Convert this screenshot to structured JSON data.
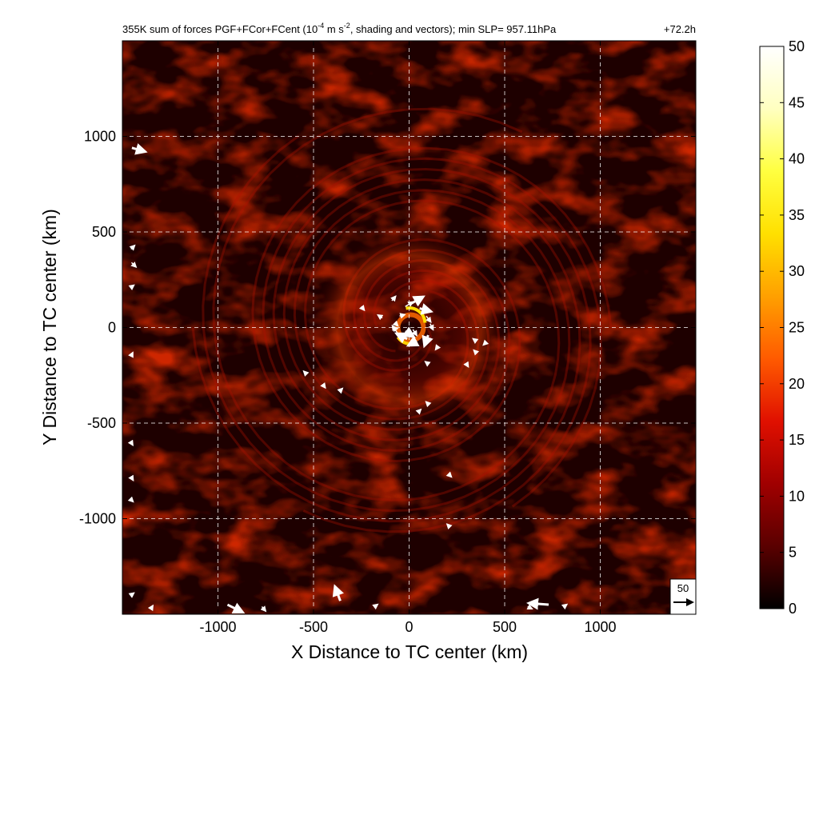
{
  "chart_data": {
    "type": "heatmap",
    "title": {
      "prefix": "355K sum of forces PGF+FCor+FCent (10",
      "exp1": "-4",
      "mid": " m s",
      "exp2": "-2",
      "suffix": ", shading and vectors); min SLP= 957.11hPa",
      "time": "+72.2h"
    },
    "xlabel": "X Distance to TC center (km)",
    "ylabel": "Y Distance to TC center (km)",
    "xlim": [
      -1500,
      1500
    ],
    "ylim": [
      -1500,
      1500
    ],
    "xticks": [
      -1000,
      -500,
      0,
      500,
      1000
    ],
    "yticks": [
      -1000,
      -500,
      0,
      500,
      1000
    ],
    "grid": true,
    "colorbar": {
      "range": [
        0,
        50
      ],
      "ticks": [
        0,
        5,
        10,
        15,
        20,
        25,
        30,
        35,
        40,
        45,
        50
      ],
      "colors": [
        "#000000",
        "#5a0000",
        "#a00000",
        "#e01000",
        "#ff5a00",
        "#ffa000",
        "#ffe000",
        "#ffff40",
        "#ffffc0",
        "#ffffff"
      ]
    },
    "reference_vector": {
      "label": "50"
    },
    "vectors": [
      {
        "x": -1450,
        "y": 940,
        "u": 35,
        "v": -10
      },
      {
        "x": -1455,
        "y": 410,
        "u": 10,
        "v": 10
      },
      {
        "x": -1452,
        "y": 340,
        "u": 12,
        "v": -12
      },
      {
        "x": -1455,
        "y": 210,
        "u": 8,
        "v": 6
      },
      {
        "x": -1455,
        "y": -150,
        "u": 5,
        "v": 10
      },
      {
        "x": -1455,
        "y": -600,
        "u": 5,
        "v": -8
      },
      {
        "x": -1455,
        "y": -780,
        "u": 6,
        "v": -10
      },
      {
        "x": -1455,
        "y": -900,
        "u": 6,
        "v": -6
      },
      {
        "x": -1455,
        "y": -1400,
        "u": 8,
        "v": 6
      },
      {
        "x": -250,
        "y": 110,
        "u": 8,
        "v": -10
      },
      {
        "x": -140,
        "y": 50,
        "u": -12,
        "v": 8
      },
      {
        "x": -90,
        "y": 140,
        "u": 10,
        "v": 12
      },
      {
        "x": -70,
        "y": 20,
        "u": 6,
        "v": -6
      },
      {
        "x": -50,
        "y": 60,
        "u": 14,
        "v": 4
      },
      {
        "x": -20,
        "y": 110,
        "u": 20,
        "v": 12
      },
      {
        "x": 10,
        "y": 125,
        "u": 32,
        "v": 18
      },
      {
        "x": 55,
        "y": 100,
        "u": 30,
        "v": -8
      },
      {
        "x": 90,
        "y": 60,
        "u": 12,
        "v": -16
      },
      {
        "x": 110,
        "y": 20,
        "u": 8,
        "v": -16
      },
      {
        "x": 100,
        "y": -40,
        "u": -10,
        "v": -28
      },
      {
        "x": 40,
        "y": -70,
        "u": -22,
        "v": -12
      },
      {
        "x": -10,
        "y": -60,
        "u": -28,
        "v": 14
      },
      {
        "x": -60,
        "y": -30,
        "u": -14,
        "v": 20
      },
      {
        "x": -70,
        "y": -10,
        "u": -6,
        "v": 8
      },
      {
        "x": -20,
        "y": -20,
        "u": 22,
        "v": -14
      },
      {
        "x": 20,
        "y": -10,
        "u": 10,
        "v": -16
      },
      {
        "x": 150,
        "y": -100,
        "u": -6,
        "v": -8
      },
      {
        "x": 100,
        "y": -190,
        "u": -8,
        "v": 6
      },
      {
        "x": -540,
        "y": -240,
        "u": -6,
        "v": 6
      },
      {
        "x": -450,
        "y": -300,
        "u": 6,
        "v": -8
      },
      {
        "x": -360,
        "y": -330,
        "u": 6,
        "v": 6
      },
      {
        "x": 350,
        "y": -70,
        "u": -8,
        "v": 6
      },
      {
        "x": 400,
        "y": -80,
        "u": -6,
        "v": -6
      },
      {
        "x": 350,
        "y": -130,
        "u": -6,
        "v": 6
      },
      {
        "x": 300,
        "y": -190,
        "u": 5,
        "v": -8
      },
      {
        "x": 100,
        "y": -400,
        "u": -6,
        "v": 6
      },
      {
        "x": 50,
        "y": -440,
        "u": 6,
        "v": 6
      },
      {
        "x": 210,
        "y": -770,
        "u": 6,
        "v": -6
      },
      {
        "x": 210,
        "y": -1040,
        "u": -6,
        "v": 6
      },
      {
        "x": -950,
        "y": -1450,
        "u": 40,
        "v": -20
      },
      {
        "x": -770,
        "y": -1460,
        "u": 10,
        "v": -12
      },
      {
        "x": -360,
        "y": -1430,
        "u": -14,
        "v": 38
      },
      {
        "x": -180,
        "y": -1460,
        "u": 8,
        "v": 6
      },
      {
        "x": -1350,
        "y": -1470,
        "u": 5,
        "v": 8
      },
      {
        "x": 730,
        "y": -1450,
        "u": -52,
        "v": 4
      },
      {
        "x": 620,
        "y": -1460,
        "u": 12,
        "v": -6
      },
      {
        "x": 810,
        "y": -1460,
        "u": 8,
        "v": 6
      }
    ]
  }
}
